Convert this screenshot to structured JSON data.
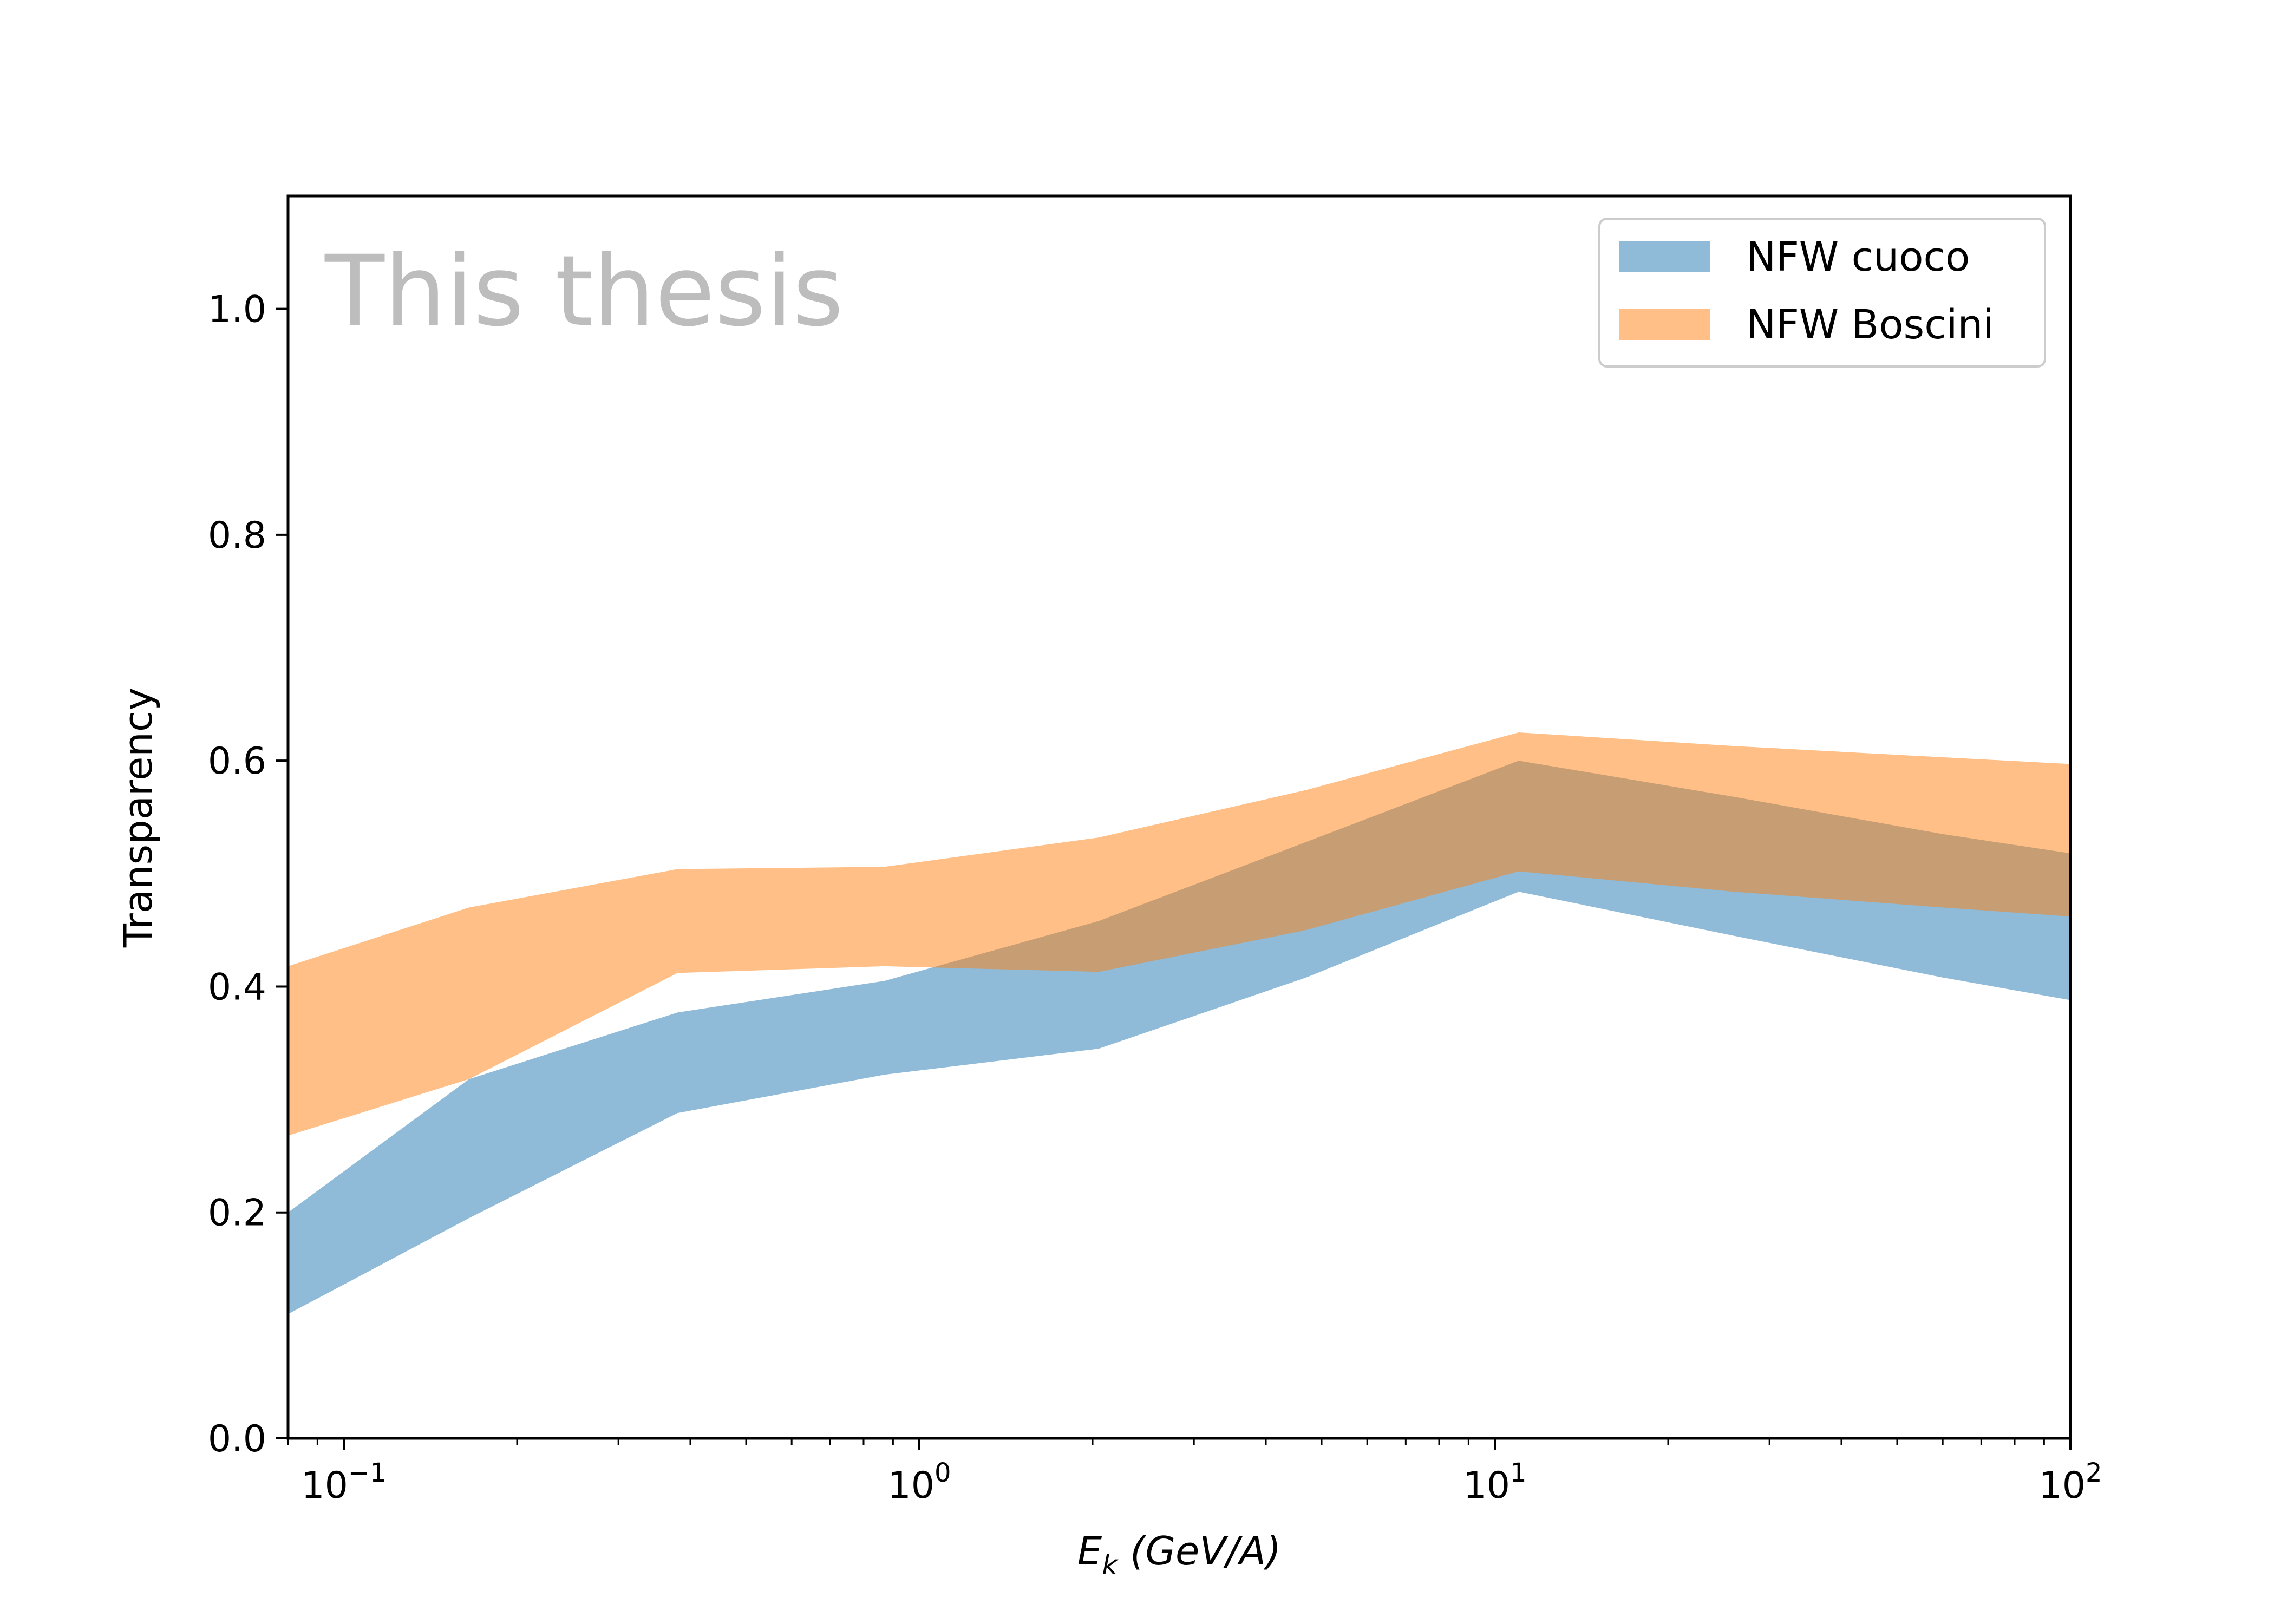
{
  "chart_data": {
    "type": "area",
    "xscale": "log",
    "xlim": [
      0.08,
      100
    ],
    "ylim": [
      0.0,
      1.1
    ],
    "xlabel_main": "E",
    "xlabel_sub": "k",
    "xlabel_rest": " (GeV/A)",
    "ylabel": "Transparency",
    "watermark": "This thesis",
    "watermark_color": "#bdbdbd",
    "grid": false,
    "legend_position": "upper right",
    "y_ticks": [
      "0.0",
      "0.2",
      "0.4",
      "0.6",
      "0.8",
      "1.0"
    ],
    "x_ticks": [
      {
        "value": 0.1,
        "base": "10",
        "exp": "−1"
      },
      {
        "value": 1,
        "base": "10",
        "exp": "0"
      },
      {
        "value": 10,
        "base": "10",
        "exp": "1"
      },
      {
        "value": 100,
        "base": "10",
        "exp": "2"
      }
    ],
    "series": [
      {
        "name": "NFW cuoco",
        "color": "#1f77b4",
        "opacity": 0.5,
        "x": [
          0.08,
          0.165,
          0.38,
          0.87,
          2.05,
          4.7,
          11,
          26,
          60,
          100
        ],
        "y_lower": [
          0.11,
          0.195,
          0.288,
          0.322,
          0.345,
          0.408,
          0.484,
          0.445,
          0.408,
          0.388
        ],
        "y_upper": [
          0.2,
          0.318,
          0.377,
          0.405,
          0.458,
          0.528,
          0.6,
          0.568,
          0.535,
          0.518
        ]
      },
      {
        "name": "NFW Boscini",
        "color": "#ff7f0e",
        "opacity": 0.5,
        "x": [
          0.08,
          0.165,
          0.38,
          0.87,
          2.05,
          4.7,
          11,
          26,
          60,
          100
        ],
        "y_lower": [
          0.268,
          0.318,
          0.412,
          0.418,
          0.413,
          0.45,
          0.502,
          0.484,
          0.47,
          0.462
        ],
        "y_upper": [
          0.418,
          0.47,
          0.504,
          0.506,
          0.532,
          0.574,
          0.625,
          0.613,
          0.603,
          0.597
        ]
      }
    ]
  }
}
